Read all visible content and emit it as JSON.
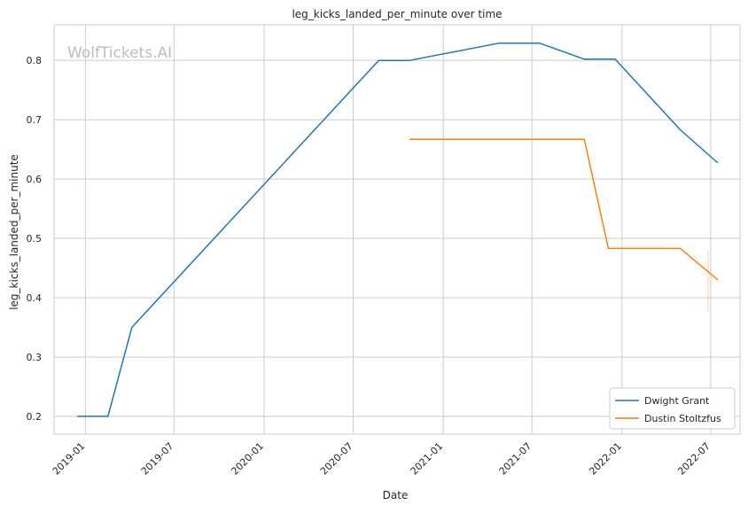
{
  "chart_data": {
    "type": "line",
    "title": "leg_kicks_landed_per_minute over time",
    "xlabel": "Date",
    "ylabel": "leg_kicks_landed_per_minute",
    "watermark": "WolfTickets.AI",
    "x_ticks": [
      "2019-01",
      "2019-07",
      "2020-01",
      "2020-07",
      "2021-01",
      "2021-07",
      "2022-01",
      "2022-07"
    ],
    "y_ticks": [
      "0.2",
      "0.3",
      "0.4",
      "0.5",
      "0.6",
      "0.7",
      "0.8"
    ],
    "xlim": [
      "2018-10-29",
      "2022-08-30"
    ],
    "ylim": [
      0.17,
      0.86
    ],
    "grid": true,
    "legend_position": "lower-right",
    "series": [
      {
        "name": "Dwight Grant",
        "color": "#1f77b4",
        "x": [
          "2018-12-15",
          "2019-02-16",
          "2019-04-06",
          "2020-08-22",
          "2020-10-24",
          "2021-04-24",
          "2021-07-17",
          "2021-10-16",
          "2021-12-18",
          "2022-04-30",
          "2022-07-16"
        ],
        "y": [
          0.2,
          0.2,
          0.35,
          0.8,
          0.8,
          0.829,
          0.829,
          0.802,
          0.802,
          0.683,
          0.627
        ]
      },
      {
        "name": "Dustin Stoltzfus",
        "color": "#ff7f0e",
        "x": [
          "2020-10-24",
          "2021-10-16",
          "2021-12-04",
          "2022-04-30",
          "2022-07-16"
        ],
        "y": [
          0.667,
          0.667,
          0.483,
          0.483,
          0.43
        ]
      }
    ]
  }
}
